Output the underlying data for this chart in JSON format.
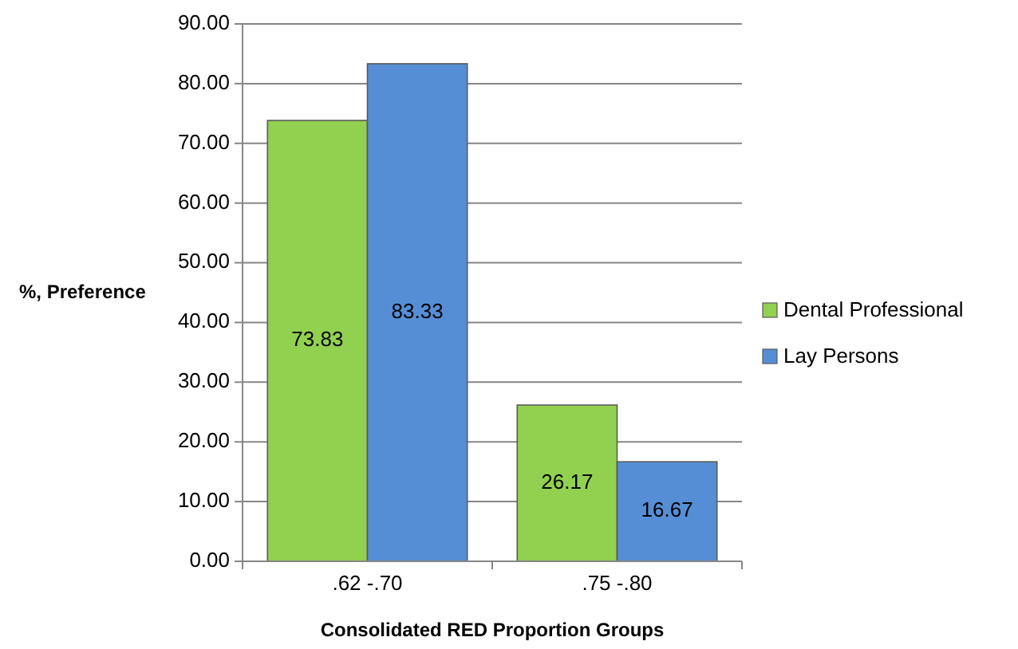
{
  "chart_data": {
    "type": "bar",
    "xlabel": "Consolidated RED Proportion Groups",
    "ylabel": "%, Preference",
    "categories": [
      ".62 -.70",
      ".75 -.80"
    ],
    "series": [
      {
        "name": "Dental Professional",
        "color": "#92d050",
        "values": [
          73.83,
          26.17
        ]
      },
      {
        "name": "Lay Persons",
        "color": "#558ed5",
        "values": [
          83.33,
          16.67
        ]
      }
    ],
    "ylim": [
      0,
      90
    ],
    "yticks": [
      {
        "value": 0,
        "label": "0.00"
      },
      {
        "value": 10,
        "label": "10.00"
      },
      {
        "value": 20,
        "label": "20.00"
      },
      {
        "value": 30,
        "label": "30.00"
      },
      {
        "value": 40,
        "label": "40.00"
      },
      {
        "value": 50,
        "label": "50.00"
      },
      {
        "value": 60,
        "label": "60.00"
      },
      {
        "value": 70,
        "label": "70.00"
      },
      {
        "value": 80,
        "label": "80.00"
      },
      {
        "value": 90,
        "label": "90.00"
      }
    ],
    "grid": "y",
    "legend": "right",
    "data_labels": true
  }
}
